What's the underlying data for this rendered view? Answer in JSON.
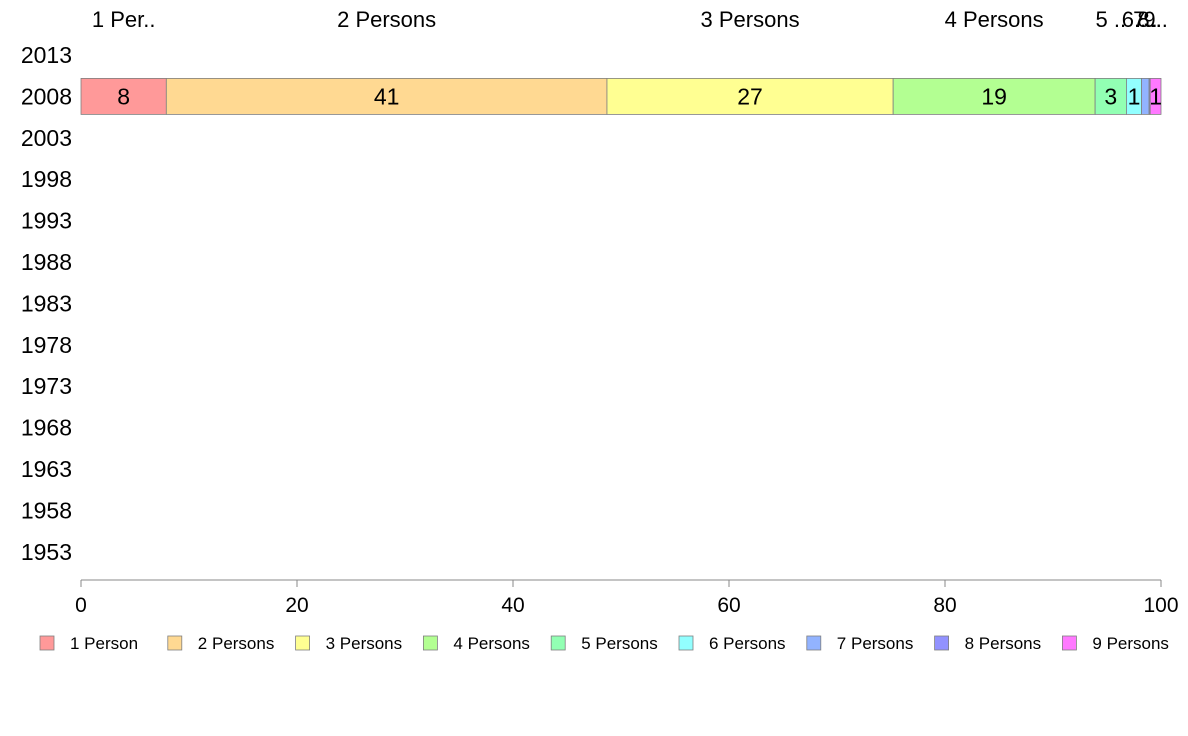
{
  "chart_data": {
    "type": "bar",
    "orientation": "horizontal",
    "stacked": true,
    "title": "",
    "xlabel": "",
    "ylabel": "",
    "categories": [
      "2013",
      "2008",
      "2003",
      "1998",
      "1993",
      "1988",
      "1983",
      "1978",
      "1973",
      "1968",
      "1963",
      "1958",
      "1953"
    ],
    "xlim": [
      0,
      100
    ],
    "x_ticks": [
      0,
      20,
      40,
      60,
      80,
      100
    ],
    "grid": false,
    "legend_position": "bottom",
    "series": [
      {
        "name": "1 Person",
        "color": "#ff9999",
        "top_label": "1 Per..",
        "values": [
          null,
          7.9,
          null,
          null,
          null,
          null,
          null,
          null,
          null,
          null,
          null,
          null,
          null
        ]
      },
      {
        "name": "2 Persons",
        "color": "#ffd992",
        "top_label": "2 Persons",
        "values": [
          null,
          40.8,
          null,
          null,
          null,
          null,
          null,
          null,
          null,
          null,
          null,
          null,
          null
        ]
      },
      {
        "name": "3 Persons",
        "color": "#ffff92",
        "top_label": "3 Persons",
        "values": [
          null,
          26.5,
          null,
          null,
          null,
          null,
          null,
          null,
          null,
          null,
          null,
          null,
          null
        ]
      },
      {
        "name": "4 Persons",
        "color": "#b3ff92",
        "top_label": "4 Persons",
        "values": [
          null,
          18.7,
          null,
          null,
          null,
          null,
          null,
          null,
          null,
          null,
          null,
          null,
          null
        ]
      },
      {
        "name": "5 Persons",
        "color": "#92ffb3",
        "top_label": "5 ..",
        "values": [
          null,
          2.9,
          null,
          null,
          null,
          null,
          null,
          null,
          null,
          null,
          null,
          null,
          null
        ]
      },
      {
        "name": "6 Persons",
        "color": "#92ffff",
        "top_label": "6..",
        "values": [
          null,
          1.4,
          null,
          null,
          null,
          null,
          null,
          null,
          null,
          null,
          null,
          null,
          null
        ]
      },
      {
        "name": "7 Persons",
        "color": "#92b3ff",
        "top_label": "7..",
        "values": [
          null,
          0.7,
          null,
          null,
          null,
          null,
          null,
          null,
          null,
          null,
          null,
          null,
          null
        ]
      },
      {
        "name": "8 Persons",
        "color": "#9292ff",
        "top_label": "8..",
        "values": [
          null,
          0.1,
          null,
          null,
          null,
          null,
          null,
          null,
          null,
          null,
          null,
          null,
          null
        ]
      },
      {
        "name": "9 Persons",
        "color": "#ff79ff",
        "top_label": "9..",
        "values": [
          null,
          1.0,
          null,
          null,
          null,
          null,
          null,
          null,
          null,
          null,
          null,
          null,
          null
        ]
      }
    ],
    "data_labels": {
      "2008": [
        "8",
        "41",
        "27",
        "19",
        "3",
        "1",
        "",
        "",
        "1"
      ]
    }
  }
}
